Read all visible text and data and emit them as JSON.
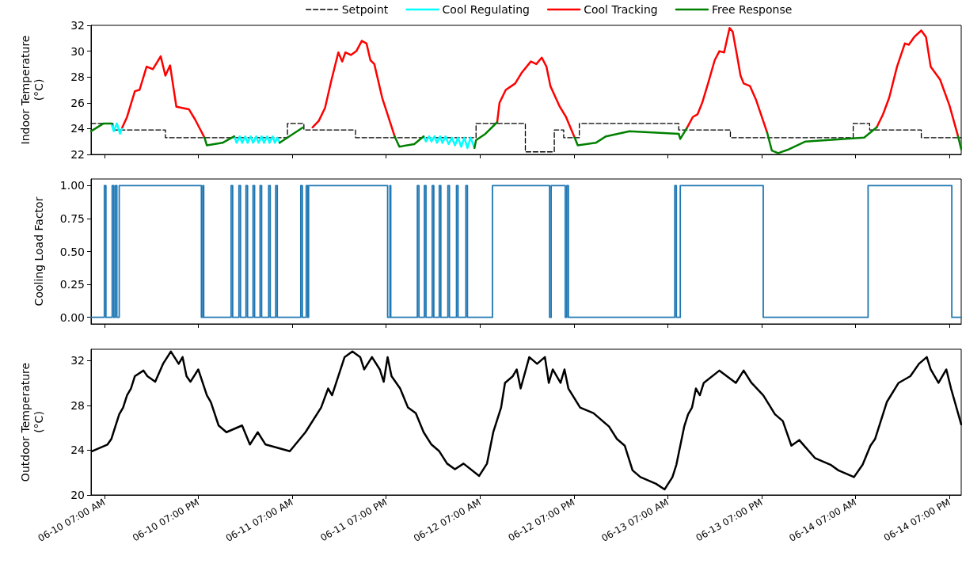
{
  "chart_data": [
    {
      "type": "line",
      "ylabel": "Indoor Temperature\n(°C)",
      "xlim": [
        "--06-10T05:18",
        "--06-14T20:30"
      ],
      "ylim": [
        22,
        32
      ],
      "yticks": [
        22,
        24,
        26,
        28,
        30,
        32
      ],
      "xticks": [
        {
          "value": "--06-10T07:00",
          "label": "06-10 07:00 AM"
        },
        {
          "value": "--06-10T19:00",
          "label": "06-10 07:00 PM"
        },
        {
          "value": "--06-11T07:00",
          "label": "06-11 07:00 AM"
        },
        {
          "value": "--06-11T19:00",
          "label": "06-11 07:00 PM"
        },
        {
          "value": "--06-12T07:00",
          "label": "06-12 07:00 AM"
        },
        {
          "value": "--06-12T19:00",
          "label": "06-12 07:00 PM"
        },
        {
          "value": "--06-13T07:00",
          "label": "06-13 07:00 AM"
        },
        {
          "value": "--06-13T19:00",
          "label": "06-13 07:00 PM"
        },
        {
          "value": "--06-14T07:00",
          "label": "06-14 07:00 AM"
        },
        {
          "value": "--06-14T19:00",
          "label": "06-14 07:00 PM"
        }
      ],
      "tick_labels": "y",
      "grid": false,
      "legend": "top",
      "marker": "none",
      "series": [
        {
          "name": "Setpoint",
          "type": "step",
          "color": "#000000",
          "line_style": "dashed",
          "x": [
            "--06-10T05:18",
            "--06-10T08:06",
            "--06-10T14:48",
            "--06-11T06:24",
            "--06-11T08:30",
            "--06-11T15:06",
            "--06-12T06:30",
            "--06-12T12:48",
            "--06-12T16:30",
            "--06-12T17:42",
            "--06-12T19:42",
            "--06-13T08:24",
            "--06-13T15:00",
            "--06-14T06:42",
            "--06-14T08:48",
            "--06-14T15:24",
            "--06-14T20:30"
          ],
          "values": [
            24.4,
            23.9,
            23.3,
            24.4,
            23.9,
            23.3,
            24.4,
            22.2,
            23.9,
            23.3,
            24.4,
            23.9,
            23.3,
            24.4,
            23.9,
            23.3,
            23.3
          ]
        },
        {
          "name": "Cool Regulating",
          "color": "#00ffff",
          "x": [
            "--06-10T07:54",
            "--06-10T08:12",
            "--06-10T08:36",
            "--06-10T09:00",
            "--06-10T09:18",
            null,
            "--06-10T23:36",
            "--06-10T23:54",
            "--06-11T00:18",
            "--06-11T00:36",
            "--06-11T01:00",
            "--06-11T01:18",
            "--06-11T01:42",
            "--06-11T02:00",
            "--06-11T02:24",
            "--06-11T02:42",
            "--06-11T03:06",
            "--06-11T03:24",
            "--06-11T03:48",
            "--06-11T04:06",
            "--06-11T04:30",
            "--06-11T04:48",
            "--06-11T05:06",
            "--06-11T05:24",
            null,
            "--06-11T23:48",
            "--06-12T00:06",
            "--06-12T00:30",
            "--06-12T00:48",
            "--06-12T01:12",
            "--06-12T01:30",
            "--06-12T01:54",
            "--06-12T02:12",
            "--06-12T02:36",
            "--06-12T03:00",
            "--06-12T03:24",
            "--06-12T03:48",
            "--06-12T04:12",
            "--06-12T04:36",
            "--06-12T05:00",
            "--06-12T05:24",
            "--06-12T05:48",
            "--06-12T06:18"
          ],
          "values": [
            24.4,
            23.8,
            24.4,
            23.6,
            24.1,
            null,
            23.4,
            22.9,
            23.4,
            22.9,
            23.4,
            22.9,
            23.4,
            22.9,
            23.4,
            22.9,
            23.4,
            22.9,
            23.4,
            22.9,
            23.4,
            22.9,
            23.3,
            22.9,
            null,
            23.4,
            23.0,
            23.4,
            23.0,
            23.4,
            22.9,
            23.4,
            22.9,
            23.4,
            22.8,
            23.3,
            22.7,
            23.3,
            22.6,
            23.3,
            22.5,
            23.3,
            22.5
          ]
        },
        {
          "name": "Cool Tracking",
          "color": "#ff0000",
          "x": [
            "--06-10T09:18",
            "--06-10T09:54",
            "--06-10T10:54",
            "--06-10T11:30",
            "--06-10T12:24",
            "--06-10T13:12",
            "--06-10T14:12",
            "--06-10T14:48",
            "--06-10T15:24",
            "--06-10T16:12",
            "--06-10T17:48",
            "--06-10T18:36",
            "--06-10T19:48",
            null,
            "--06-11T09:36",
            "--06-11T10:24",
            "--06-11T11:12",
            "--06-11T12:00",
            "--06-11T12:54",
            "--06-11T13:24",
            "--06-11T13:48",
            "--06-11T14:30",
            "--06-11T15:12",
            "--06-11T15:54",
            "--06-11T16:30",
            "--06-11T17:00",
            "--06-11T17:30",
            "--06-11T18:30",
            "--06-11T20:06",
            null,
            "--06-12T09:12",
            "--06-12T09:30",
            "--06-12T10:18",
            "--06-12T11:30",
            "--06-12T12:18",
            "--06-12T13:30",
            "--06-12T14:12",
            "--06-12T14:54",
            "--06-12T15:30",
            "--06-12T16:00",
            "--06-12T16:36",
            "--06-12T17:12",
            "--06-12T18:00",
            "--06-12T19:06",
            null,
            "--06-13T09:24",
            "--06-13T10:12",
            "--06-13T10:48",
            "--06-13T11:24",
            "--06-13T12:12",
            "--06-13T13:00",
            "--06-13T13:36",
            "--06-13T14:12",
            "--06-13T14:54",
            "--06-13T15:18",
            "--06-13T15:54",
            "--06-13T16:18",
            "--06-13T16:42",
            "--06-13T17:30",
            "--06-13T18:18",
            "--06-13T19:42",
            null,
            "--06-14T09:42",
            "--06-14T10:30",
            "--06-14T11:18",
            "--06-14T12:18",
            "--06-14T13:18",
            "--06-14T13:48",
            "--06-14T14:30",
            "--06-14T15:24",
            "--06-14T16:00",
            "--06-14T16:36",
            "--06-14T17:48",
            "--06-14T19:00",
            "--06-14T20:06"
          ],
          "values": [
            24.1,
            24.9,
            26.9,
            27.0,
            28.8,
            28.6,
            29.6,
            28.1,
            28.9,
            25.7,
            25.5,
            24.7,
            23.3,
            null,
            24.1,
            24.6,
            25.6,
            27.7,
            29.9,
            29.2,
            29.9,
            29.7,
            30.0,
            30.8,
            30.6,
            29.3,
            29.0,
            26.4,
            23.4,
            null,
            24.5,
            26.0,
            27.0,
            27.5,
            28.3,
            29.2,
            29.0,
            29.5,
            28.8,
            27.3,
            26.5,
            25.7,
            24.9,
            23.3,
            null,
            24.0,
            24.9,
            25.1,
            26.0,
            27.6,
            29.3,
            30.0,
            29.9,
            31.8,
            31.5,
            29.5,
            28.1,
            27.5,
            27.3,
            26.2,
            23.7,
            null,
            24.1,
            25.1,
            26.4,
            28.8,
            30.6,
            30.5,
            31.1,
            31.6,
            31.1,
            28.8,
            27.8,
            25.8,
            23.4
          ]
        },
        {
          "name": "Free Response",
          "color": "#008000",
          "x": [
            "--06-10T05:18",
            "--06-10T06:54",
            "--06-10T07:54",
            null,
            "--06-10T19:48",
            "--06-10T20:06",
            "--06-10T22:06",
            "--06-10T23:36",
            null,
            "--06-11T05:24",
            "--06-11T06:24",
            "--06-11T08:24",
            null,
            "--06-11T20:06",
            "--06-11T20:42",
            "--06-11T22:36",
            "--06-11T23:48",
            null,
            "--06-12T06:18",
            "--06-12T06:30",
            "--06-12T07:42",
            "--06-12T09:12",
            null,
            "--06-12T19:06",
            "--06-12T19:30",
            "--06-12T21:48",
            "--06-12T23:06",
            "--06-13T02:06",
            "--06-13T08:24",
            "--06-13T08:36",
            "--06-13T09:24",
            null,
            "--06-13T19:42",
            "--06-13T20:18",
            "--06-13T21:06",
            "--06-13T22:30",
            "--06-14T00:36",
            "--06-14T08:06",
            "--06-14T09:42",
            null,
            "--06-14T20:06",
            "--06-14T20:30"
          ],
          "values": [
            23.8,
            24.4,
            24.4,
            null,
            23.3,
            22.7,
            22.9,
            23.4,
            null,
            22.9,
            23.3,
            24.1,
            null,
            23.4,
            22.6,
            22.8,
            23.4,
            null,
            22.5,
            23.1,
            23.6,
            24.5,
            null,
            23.3,
            22.7,
            22.9,
            23.4,
            23.8,
            23.6,
            23.2,
            24.0,
            null,
            23.7,
            22.3,
            22.1,
            22.4,
            23.0,
            23.3,
            24.1,
            null,
            23.4,
            22.4
          ]
        }
      ]
    },
    {
      "type": "step",
      "ylabel": "Cooling Load Factor",
      "xlim": [
        "--06-10T05:18",
        "--06-14T20:30"
      ],
      "ylim": [
        -0.05,
        1.05
      ],
      "yticks": [
        {
          "value": 0,
          "label": "0.00"
        },
        {
          "value": 0.25,
          "label": "0.25"
        },
        {
          "value": 0.5,
          "label": "0.50"
        },
        {
          "value": 0.75,
          "label": "0.75"
        },
        {
          "value": 1,
          "label": "1.00"
        }
      ],
      "xticks": [
        {
          "value": "--06-10T07:00",
          "label": "06-10 07:00 AM"
        },
        {
          "value": "--06-10T19:00",
          "label": "06-10 07:00 PM"
        },
        {
          "value": "--06-11T07:00",
          "label": "06-11 07:00 AM"
        },
        {
          "value": "--06-11T19:00",
          "label": "06-11 07:00 PM"
        },
        {
          "value": "--06-12T07:00",
          "label": "06-12 07:00 AM"
        },
        {
          "value": "--06-12T19:00",
          "label": "06-12 07:00 PM"
        },
        {
          "value": "--06-13T07:00",
          "label": "06-13 07:00 AM"
        },
        {
          "value": "--06-13T19:00",
          "label": "06-13 07:00 PM"
        },
        {
          "value": "--06-14T07:00",
          "label": "06-14 07:00 AM"
        },
        {
          "value": "--06-14T19:00",
          "label": "06-14 07:00 PM"
        }
      ],
      "tick_labels": "y",
      "grid": false,
      "marker": "none",
      "series": [
        {
          "color": "#1f77b4",
          "x": [
            "--06-10T05:18",
            "--06-10T07:00",
            "--06-10T07:12",
            "--06-10T08:00",
            "--06-10T08:12",
            "--06-10T08:24",
            "--06-10T08:36",
            "--06-10T08:54",
            "--06-10T19:24",
            "--06-10T19:36",
            "--06-10T19:42",
            "--06-10T23:12",
            "--06-10T23:24",
            "--06-11T00:12",
            "--06-11T00:24",
            "--06-11T01:06",
            "--06-11T01:18",
            "--06-11T02:00",
            "--06-11T02:12",
            "--06-11T02:54",
            "--06-11T03:06",
            "--06-11T04:00",
            "--06-11T04:12",
            "--06-11T04:54",
            "--06-11T05:06",
            "--06-11T08:06",
            "--06-11T08:18",
            "--06-11T08:48",
            "--06-11T09:00",
            "--06-11T09:06",
            "--06-11T19:12",
            "--06-11T19:30",
            "--06-11T19:36",
            "--06-11T23:00",
            "--06-11T23:12",
            "--06-11T23:54",
            "--06-12T00:06",
            "--06-12T00:54",
            "--06-12T01:06",
            "--06-12T01:48",
            "--06-12T02:00",
            "--06-12T02:54",
            "--06-12T03:06",
            "--06-12T04:00",
            "--06-12T04:12",
            "--06-12T05:12",
            "--06-12T05:24",
            "--06-12T08:36",
            "--06-12T15:54",
            "--06-12T16:06",
            "--06-12T17:54",
            "--06-12T18:06",
            "--06-12T18:18",
            "--06-13T07:54",
            "--06-13T08:06",
            "--06-13T08:36",
            "--06-13T19:12",
            "--06-14T08:36",
            "--06-14T19:18",
            "--06-14T20:30"
          ],
          "values": [
            0,
            1,
            0,
            1,
            0,
            1,
            0,
            1,
            0,
            1,
            0,
            1,
            0,
            1,
            0,
            1,
            0,
            1,
            0,
            1,
            0,
            1,
            0,
            1,
            0,
            1,
            0,
            1,
            0,
            1,
            0,
            1,
            0,
            1,
            0,
            1,
            0,
            1,
            0,
            1,
            0,
            1,
            0,
            1,
            0,
            1,
            0,
            1,
            0,
            1,
            0,
            1,
            0,
            1,
            0,
            1,
            0,
            1,
            0,
            0
          ]
        }
      ]
    },
    {
      "type": "line",
      "ylabel": "Outdoor Temperature\n(°C)",
      "xlim": [
        "--06-10T05:18",
        "--06-14T20:30"
      ],
      "ylim": [
        20,
        33
      ],
      "yticks": [
        20,
        24,
        28,
        32
      ],
      "xticks": [
        {
          "value": "--06-10T07:00",
          "label": "06-10 07:00 AM"
        },
        {
          "value": "--06-10T19:00",
          "label": "06-10 07:00 PM"
        },
        {
          "value": "--06-11T07:00",
          "label": "06-11 07:00 AM"
        },
        {
          "value": "--06-11T19:00",
          "label": "06-11 07:00 PM"
        },
        {
          "value": "--06-12T07:00",
          "label": "06-12 07:00 AM"
        },
        {
          "value": "--06-12T19:00",
          "label": "06-12 07:00 PM"
        },
        {
          "value": "--06-13T07:00",
          "label": "06-13 07:00 AM"
        },
        {
          "value": "--06-13T19:00",
          "label": "06-13 07:00 PM"
        },
        {
          "value": "--06-14T07:00",
          "label": "06-14 07:00 AM"
        },
        {
          "value": "--06-14T19:00",
          "label": "06-14 07:00 PM"
        }
      ],
      "grid": false,
      "marker": "none",
      "series": [
        {
          "color": "#000000",
          "x": [
            "--06-10T05:24",
            "--06-10T07:24",
            "--06-10T07:54",
            "--06-10T08:54",
            "--06-10T09:24",
            "--06-10T09:54",
            "--06-10T10:24",
            "--06-10T10:54",
            "--06-10T12:00",
            "--06-10T12:30",
            "--06-10T13:30",
            "--06-10T14:30",
            "--06-10T15:30",
            "--06-10T16:30",
            "--06-10T17:00",
            "--06-10T17:30",
            "--06-10T18:00",
            "--06-10T19:00",
            "--06-10T20:06",
            "--06-10T20:36",
            "--06-10T21:36",
            "--06-10T22:36",
            "--06-11T00:36",
            "--06-11T01:36",
            "--06-11T02:36",
            "--06-11T03:36",
            "--06-11T06:42",
            "--06-11T08:42",
            "--06-11T10:42",
            "--06-11T11:36",
            "--06-11T12:06",
            "--06-11T13:42",
            "--06-11T14:42",
            "--06-11T15:42",
            "--06-11T16:12",
            "--06-11T17:12",
            "--06-11T18:12",
            "--06-11T18:42",
            "--06-11T19:12",
            "--06-11T19:42",
            "--06-11T20:48",
            "--06-11T21:48",
            "--06-11T22:48",
            "--06-11T23:48",
            "--06-12T00:48",
            "--06-12T01:48",
            "--06-12T02:48",
            "--06-12T03:48",
            "--06-12T04:54",
            "--06-12T06:54",
            "--06-12T07:54",
            "--06-12T08:42",
            "--06-12T09:12",
            "--06-12T09:42",
            "--06-12T10:12",
            "--06-12T11:12",
            "--06-12T11:42",
            "--06-12T12:12",
            "--06-12T13:18",
            "--06-12T14:18",
            "--06-12T15:18",
            "--06-12T15:48",
            "--06-12T16:18",
            "--06-12T17:18",
            "--06-12T17:48",
            "--06-12T18:18",
            "--06-12T19:48",
            "--06-12T21:30",
            "--06-12T23:30",
            "--06-13T00:30",
            "--06-13T01:30",
            "--06-13T02:30",
            "--06-13T03:30",
            "--06-13T05:30",
            "--06-13T06:36",
            "--06-13T07:36",
            "--06-13T08:06",
            "--06-13T09:06",
            "--06-13T09:36",
            "--06-13T10:06",
            "--06-13T10:36",
            "--06-13T11:06",
            "--06-13T11:36",
            "--06-13T13:36",
            "--06-13T15:42",
            "--06-13T16:42",
            "--06-13T17:42",
            "--06-13T19:12",
            "--06-13T20:42",
            "--06-13T21:42",
            "--06-13T22:48",
            "--06-13T23:48",
            "--06-14T01:48",
            "--06-14T03:48",
            "--06-14T04:48",
            "--06-14T06:48",
            "--06-14T07:54",
            "--06-14T08:54",
            "--06-14T09:30",
            "--06-14T11:00",
            "--06-14T12:30",
            "--06-14T14:00",
            "--06-14T15:06",
            "--06-14T16:06",
            "--06-14T16:36",
            "--06-14T17:36",
            "--06-14T18:36",
            "--06-14T19:12",
            "--06-14T20:30"
          ],
          "values": [
            23.9,
            24.5,
            25.0,
            27.2,
            27.8,
            28.9,
            29.5,
            30.6,
            31.1,
            30.6,
            30.1,
            31.7,
            32.8,
            31.7,
            32.3,
            30.6,
            30.1,
            31.2,
            28.9,
            28.3,
            26.2,
            25.6,
            26.2,
            24.5,
            25.6,
            24.5,
            23.9,
            25.6,
            27.8,
            29.5,
            28.9,
            32.3,
            32.8,
            32.3,
            31.2,
            32.3,
            31.2,
            30.1,
            32.3,
            30.6,
            29.5,
            27.8,
            27.3,
            25.6,
            24.5,
            23.9,
            22.8,
            22.3,
            22.8,
            21.7,
            22.8,
            25.6,
            26.7,
            27.8,
            30.0,
            30.6,
            31.2,
            29.5,
            32.3,
            31.7,
            32.3,
            30.0,
            31.2,
            30.0,
            31.2,
            29.5,
            27.8,
            27.3,
            26.1,
            25.0,
            24.4,
            22.2,
            21.6,
            21.0,
            20.5,
            21.6,
            22.7,
            26.1,
            27.2,
            27.8,
            29.5,
            28.9,
            30.0,
            31.1,
            30.0,
            31.1,
            30.0,
            28.9,
            27.2,
            26.6,
            24.4,
            24.9,
            23.3,
            22.7,
            22.2,
            21.6,
            22.7,
            24.4,
            25.0,
            28.3,
            30.0,
            30.6,
            31.7,
            32.3,
            31.2,
            30.0,
            31.2,
            29.5,
            26.3
          ]
        }
      ]
    }
  ]
}
